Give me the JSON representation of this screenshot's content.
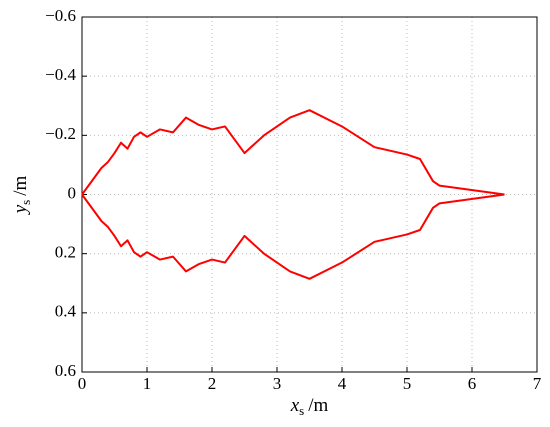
{
  "chart_data": {
    "type": "line",
    "xlabel": {
      "main": "x",
      "sub": "s",
      "unit": "/m"
    },
    "ylabel": {
      "main": "y",
      "sub": "s",
      "unit": "/m"
    },
    "x": [
      0,
      0.3,
      0.4,
      0.5,
      0.6,
      0.7,
      0.8,
      0.9,
      1.0,
      1.2,
      1.4,
      1.6,
      1.8,
      2.0,
      2.2,
      2.5,
      2.8,
      3.2,
      3.5,
      4.0,
      4.5,
      5.0,
      5.2,
      5.4,
      5.5,
      6.5
    ],
    "series": [
      {
        "color": "#ff0000",
        "values": [
          0,
          -0.09,
          -0.11,
          -0.14,
          -0.175,
          -0.155,
          -0.195,
          -0.21,
          -0.195,
          -0.22,
          -0.21,
          -0.26,
          -0.235,
          -0.22,
          -0.23,
          -0.14,
          -0.2,
          -0.26,
          -0.285,
          -0.23,
          -0.16,
          -0.135,
          -0.12,
          -0.045,
          -0.03,
          0
        ]
      },
      {
        "color": "#ff0000",
        "values": [
          0,
          0.09,
          0.11,
          0.14,
          0.175,
          0.155,
          0.195,
          0.21,
          0.195,
          0.22,
          0.21,
          0.26,
          0.235,
          0.22,
          0.23,
          0.14,
          0.2,
          0.26,
          0.285,
          0.23,
          0.16,
          0.135,
          0.12,
          0.045,
          0.03,
          0
        ]
      }
    ],
    "xlim": [
      0,
      7
    ],
    "xticks": [
      0,
      1,
      2,
      3,
      4,
      5,
      6,
      7
    ],
    "ylim": [
      -0.6,
      0.6
    ],
    "y_reversed": true,
    "yticks": [
      {
        "value": -0.6,
        "label": "−0.6"
      },
      {
        "value": -0.4,
        "label": "−0.4"
      },
      {
        "value": -0.2,
        "label": "−0.2"
      },
      0,
      0.2,
      0.4,
      0.6
    ],
    "grid": true
  }
}
